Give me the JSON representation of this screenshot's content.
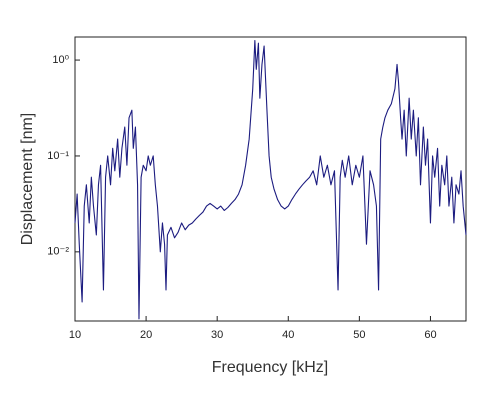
{
  "chart_data": {
    "type": "line",
    "x_label": "Frequency [kHz]",
    "y_label": "Displacement [nm]",
    "x": [
      10,
      10.3,
      10.6,
      11,
      11.3,
      11.6,
      12,
      12.3,
      12.6,
      13,
      13.3,
      13.6,
      14,
      14.3,
      14.6,
      15,
      15.3,
      15.6,
      16,
      16.3,
      16.6,
      17,
      17.3,
      17.6,
      18,
      18.2,
      18.5,
      18.8,
      19,
      19.3,
      19.6,
      20,
      20.3,
      20.6,
      21,
      21.3,
      21.6,
      22,
      22.3,
      22.6,
      22.8,
      23,
      23.5,
      24,
      24.5,
      25,
      25.5,
      26,
      26.5,
      27,
      27.5,
      28,
      28.5,
      29,
      29.5,
      30,
      30.5,
      31,
      31.5,
      32,
      32.5,
      33,
      33.5,
      34,
      34.5,
      35,
      35.3,
      35.5,
      35.8,
      36,
      36.3,
      36.6,
      37,
      37.3,
      37.6,
      38,
      38.5,
      39,
      39.5,
      40,
      40.5,
      41,
      41.5,
      42,
      42.5,
      43,
      43.5,
      44,
      44.5,
      45,
      45.5,
      46,
      46.5,
      47,
      47.3,
      47.6,
      48,
      48.5,
      49,
      49.5,
      50,
      50.5,
      51,
      51.5,
      52,
      52.4,
      52.7,
      53,
      53.3,
      53.6,
      54,
      54.5,
      55,
      55.3,
      55.5,
      55.8,
      56,
      56.3,
      56.6,
      57,
      57.3,
      57.6,
      58,
      58.3,
      58.6,
      59,
      59.3,
      59.6,
      60,
      60.3,
      60.6,
      61,
      61.3,
      61.6,
      62,
      62.3,
      62.6,
      63,
      63.3,
      63.6,
      64,
      64.3,
      64.6,
      65
    ],
    "values": [
      0.02,
      0.04,
      0.012,
      0.003,
      0.03,
      0.05,
      0.02,
      0.06,
      0.03,
      0.015,
      0.05,
      0.08,
      0.004,
      0.06,
      0.1,
      0.05,
      0.12,
      0.07,
      0.15,
      0.06,
      0.12,
      0.2,
      0.08,
      0.25,
      0.3,
      0.12,
      0.2,
      0.05,
      0.002,
      0.06,
      0.08,
      0.07,
      0.1,
      0.08,
      0.1,
      0.05,
      0.03,
      0.01,
      0.02,
      0.012,
      0.004,
      0.015,
      0.018,
      0.014,
      0.016,
      0.02,
      0.017,
      0.019,
      0.02,
      0.022,
      0.024,
      0.026,
      0.03,
      0.032,
      0.03,
      0.028,
      0.03,
      0.027,
      0.029,
      0.032,
      0.035,
      0.04,
      0.05,
      0.08,
      0.15,
      0.5,
      1.6,
      0.8,
      1.5,
      0.4,
      0.9,
      1.4,
      0.3,
      0.1,
      0.06,
      0.045,
      0.035,
      0.03,
      0.028,
      0.03,
      0.035,
      0.04,
      0.045,
      0.05,
      0.055,
      0.06,
      0.07,
      0.05,
      0.1,
      0.06,
      0.08,
      0.05,
      0.07,
      0.004,
      0.06,
      0.09,
      0.06,
      0.1,
      0.05,
      0.08,
      0.06,
      0.1,
      0.012,
      0.07,
      0.05,
      0.03,
      0.004,
      0.15,
      0.2,
      0.25,
      0.3,
      0.35,
      0.5,
      0.9,
      0.6,
      0.25,
      0.15,
      0.3,
      0.1,
      0.4,
      0.15,
      0.3,
      0.1,
      0.25,
      0.05,
      0.2,
      0.08,
      0.15,
      0.02,
      0.1,
      0.06,
      0.12,
      0.03,
      0.08,
      0.05,
      0.1,
      0.03,
      0.06,
      0.02,
      0.05,
      0.04,
      0.07,
      0.03,
      0.015
    ],
    "color": "#1c1c80",
    "xlim": [
      10,
      65
    ],
    "xticks": [
      10,
      20,
      30,
      40,
      50,
      60
    ],
    "ylim": [
      0.0019,
      1.74
    ],
    "y_log": true,
    "yticks": [
      {
        "value": 0.01,
        "label": "10⁻²"
      },
      {
        "value": 0.1,
        "label": "10⁻¹"
      },
      {
        "value": 1,
        "label": "10⁰"
      }
    ]
  }
}
